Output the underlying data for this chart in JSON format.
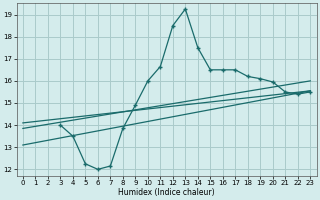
{
  "xlabel": "Humidex (Indice chaleur)",
  "background_color": "#d4ecec",
  "grid_color": "#aacaca",
  "line_color": "#1a6b6b",
  "xlim": [
    -0.5,
    23.5
  ],
  "ylim": [
    11.7,
    19.5
  ],
  "xtick_labels": [
    "0",
    "1",
    "2",
    "3",
    "4",
    "5",
    "6",
    "7",
    "8",
    "9",
    "10",
    "11",
    "12",
    "13",
    "14",
    "15",
    "16",
    "17",
    "18",
    "19",
    "20",
    "21",
    "22",
    "23"
  ],
  "xtick_vals": [
    0,
    1,
    2,
    3,
    4,
    5,
    6,
    7,
    8,
    9,
    10,
    11,
    12,
    13,
    14,
    15,
    16,
    17,
    18,
    19,
    20,
    21,
    22,
    23
  ],
  "ytick_vals": [
    12,
    13,
    14,
    15,
    16,
    17,
    18,
    19
  ],
  "series1_x": [
    3,
    4,
    5,
    6,
    7,
    8,
    9,
    10,
    11,
    12,
    13,
    14,
    15,
    16,
    17,
    18,
    19,
    20,
    21,
    22,
    23
  ],
  "series1_y": [
    14.0,
    13.5,
    12.25,
    12.0,
    12.15,
    13.85,
    14.9,
    16.0,
    16.65,
    18.5,
    19.25,
    17.5,
    16.5,
    16.5,
    16.5,
    16.2,
    16.1,
    15.95,
    15.5,
    15.4,
    15.5
  ],
  "line1_x": [
    0,
    23
  ],
  "line1_y": [
    13.85,
    16.0
  ],
  "line2_x": [
    0,
    23
  ],
  "line2_y": [
    14.1,
    15.55
  ],
  "line3_x": [
    0,
    23
  ],
  "line3_y": [
    13.1,
    15.55
  ]
}
